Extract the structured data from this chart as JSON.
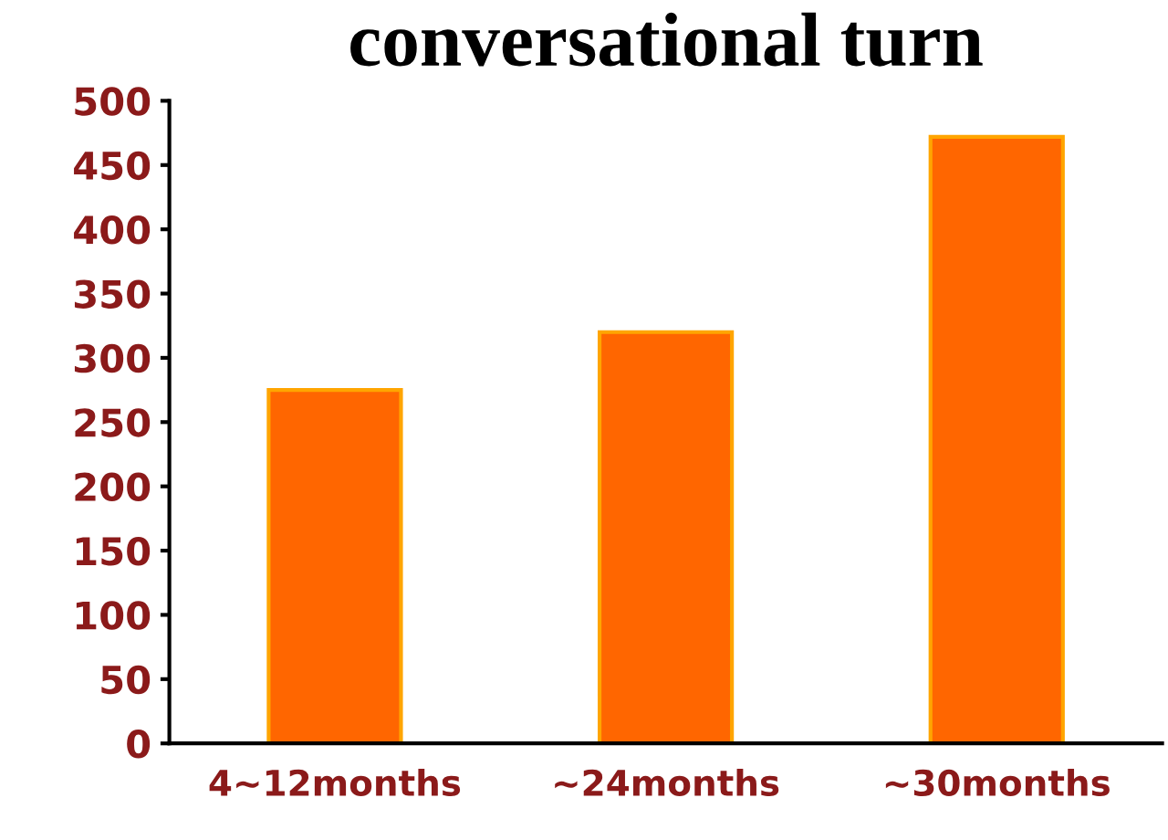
{
  "chart_data": {
    "type": "bar",
    "title": "conversational turn",
    "categories": [
      "4∼12months",
      "∼24months",
      "∼30months"
    ],
    "values": [
      275,
      320,
      472
    ],
    "color": "#ff6600",
    "ylim": [
      0,
      500
    ],
    "yticks": [
      0,
      50,
      100,
      150,
      200,
      250,
      300,
      350,
      400,
      450,
      500
    ],
    "grid": false,
    "legend": false
  }
}
